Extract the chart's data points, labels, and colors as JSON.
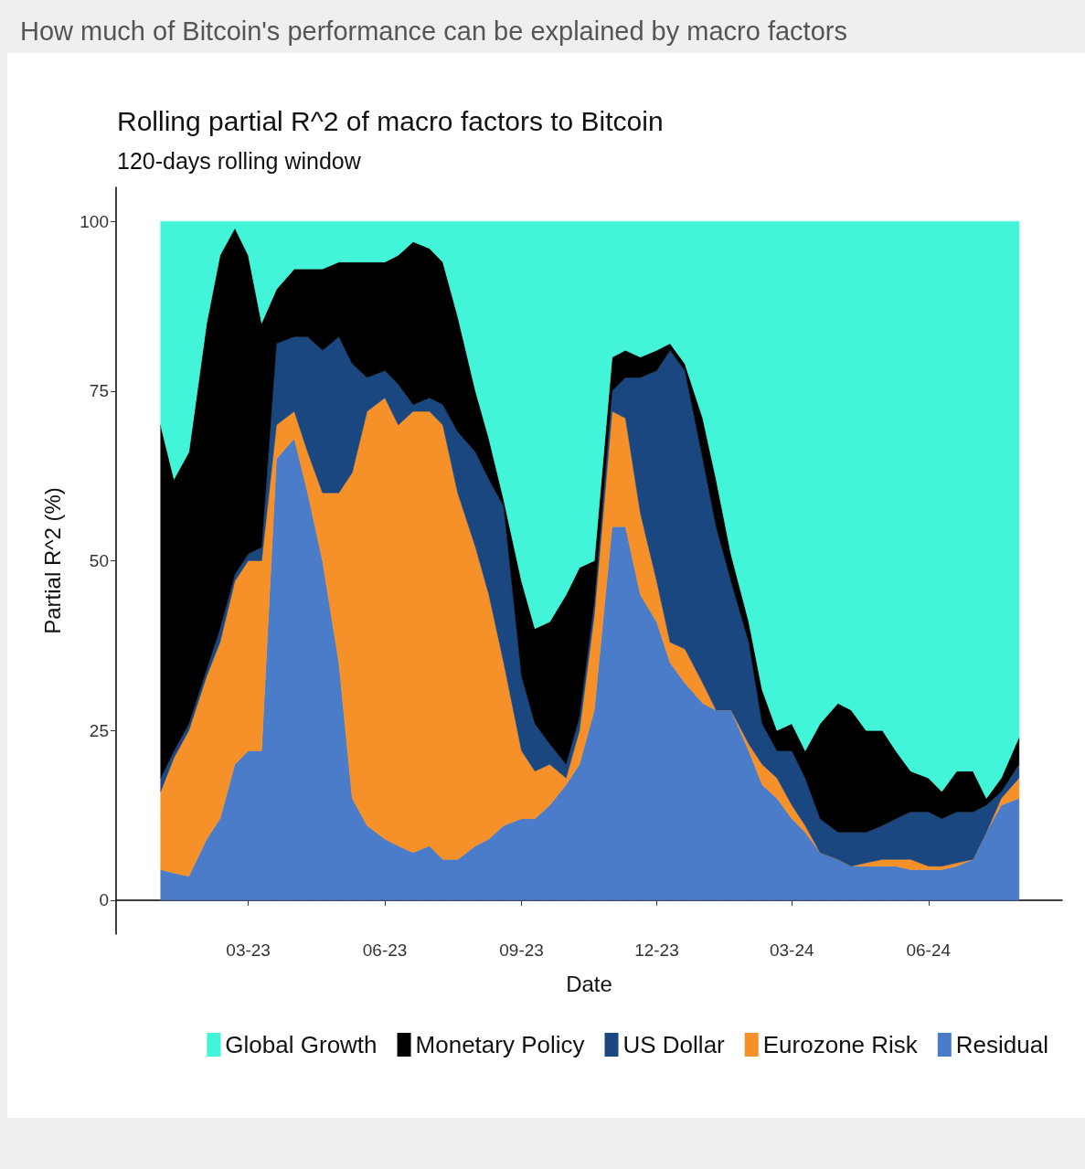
{
  "chart_data": {
    "type": "area",
    "stacked": true,
    "title": "How much of Bitcoin's performance can be explained by macro factors",
    "subtitle": "Rolling partial R^2 of macro factors to Bitcoin",
    "annotations": [
      "120-days rolling window"
    ],
    "xlabel": "Date",
    "ylabel": "Partial R^2 (%)",
    "x": [
      "2023-01-01",
      "2023-01-10",
      "2023-01-20",
      "2023-02-01",
      "2023-02-10",
      "2023-02-20",
      "2023-03-01",
      "2023-03-10",
      "2023-03-20",
      "2023-04-01",
      "2023-04-10",
      "2023-04-20",
      "2023-05-01",
      "2023-05-10",
      "2023-05-20",
      "2023-06-01",
      "2023-06-10",
      "2023-06-20",
      "2023-07-01",
      "2023-07-10",
      "2023-07-20",
      "2023-08-01",
      "2023-08-10",
      "2023-08-20",
      "2023-09-01",
      "2023-09-10",
      "2023-09-20",
      "2023-10-01",
      "2023-10-10",
      "2023-10-20",
      "2023-11-01",
      "2023-11-10",
      "2023-11-20",
      "2023-12-01",
      "2023-12-10",
      "2023-12-20",
      "2024-01-01",
      "2024-01-10",
      "2024-01-20",
      "2024-02-01",
      "2024-02-10",
      "2024-02-20",
      "2024-03-01",
      "2024-03-10",
      "2024-03-20",
      "2024-04-01",
      "2024-04-10",
      "2024-04-20",
      "2024-05-01",
      "2024-05-10",
      "2024-05-20",
      "2024-06-01",
      "2024-06-10",
      "2024-06-20",
      "2024-07-01",
      "2024-07-10",
      "2024-07-20",
      "2024-08-01"
    ],
    "series": [
      {
        "name": "Residual",
        "color": "#4a7cc9",
        "values": [
          4.5,
          4,
          3.5,
          9,
          12,
          20,
          22,
          22,
          65,
          68,
          60,
          50,
          35,
          15,
          11,
          9,
          8,
          7,
          8,
          6,
          6,
          8,
          9,
          11,
          12,
          12,
          14,
          17,
          20,
          28,
          55,
          55,
          45,
          41,
          35,
          32,
          29,
          28,
          28,
          22,
          17,
          15,
          12,
          10,
          7,
          6,
          5,
          5,
          5,
          5,
          4.5,
          4.5,
          4.5,
          5,
          6,
          10,
          14,
          15
        ]
      },
      {
        "name": "Eurozone Risk",
        "color": "#f59128",
        "values": [
          11.5,
          17,
          21.5,
          24,
          26,
          27,
          28,
          28,
          5,
          4,
          6,
          10,
          25,
          48,
          61,
          65,
          62,
          65,
          64,
          64,
          54,
          44,
          36,
          24,
          10,
          7,
          6,
          1,
          5,
          14,
          17,
          16,
          12,
          6,
          3,
          5,
          3,
          0,
          0,
          1,
          3,
          3,
          2,
          1,
          0,
          0,
          0,
          0.5,
          1,
          1,
          1.5,
          0.5,
          0.5,
          0.5,
          0,
          0,
          1,
          3
        ]
      },
      {
        "name": "US Dollar",
        "color": "#1a4780",
        "values": [
          2,
          1,
          1,
          1,
          2,
          1,
          1,
          2,
          12,
          11,
          17,
          21,
          23,
          16,
          5,
          4,
          6,
          1,
          2,
          3,
          9,
          14,
          17,
          23,
          11,
          7,
          3,
          2,
          2,
          2,
          3,
          6,
          20,
          31,
          43,
          41,
          33,
          27,
          19,
          15,
          6,
          4,
          8,
          7,
          5,
          4,
          5,
          4.5,
          5,
          6,
          7,
          8,
          7,
          7.5,
          7,
          4,
          1,
          2
        ]
      },
      {
        "name": "Monetary Policy",
        "color": "#000000",
        "values": [
          52,
          40,
          40,
          51,
          55,
          51,
          44,
          33,
          8,
          10,
          10,
          12,
          11,
          15,
          17,
          16,
          19,
          24,
          22,
          21,
          17,
          9,
          6,
          1,
          14,
          14,
          18,
          25,
          22,
          6,
          5,
          4,
          3,
          3,
          1,
          1,
          6,
          7,
          4,
          3,
          5,
          3,
          4,
          4,
          14,
          19,
          18,
          15,
          14,
          10,
          6,
          5,
          4,
          6,
          6,
          1,
          2,
          4
        ]
      },
      {
        "name": "Global Growth",
        "color": "#42f5d9",
        "values": [
          30,
          38,
          34,
          15,
          5,
          1,
          5,
          15,
          10,
          7,
          7,
          7,
          6,
          6,
          6,
          6,
          5,
          3,
          4,
          6,
          14,
          25,
          32,
          41,
          53,
          60,
          59,
          55,
          51,
          50,
          20,
          19,
          20,
          19,
          18,
          21,
          29,
          38,
          49,
          59,
          69,
          75,
          74,
          78,
          74,
          71,
          72,
          75,
          75,
          78,
          81,
          82,
          84,
          81,
          81,
          85,
          82,
          76
        ]
      }
    ],
    "xlim": [
      "2022-12-02",
      "2024-08-30"
    ],
    "xticks": [
      {
        "value": "2023-03-01",
        "label": "03-23"
      },
      {
        "value": "2023-06-01",
        "label": "06-23"
      },
      {
        "value": "2023-09-01",
        "label": "09-23"
      },
      {
        "value": "2023-12-01",
        "label": "12-23"
      },
      {
        "value": "2024-03-01",
        "label": "03-24"
      },
      {
        "value": "2024-06-01",
        "label": "06-24"
      }
    ],
    "ylim": [
      -5,
      105
    ],
    "yticks": [
      0,
      25,
      50,
      75,
      100
    ],
    "legend": "bottom"
  }
}
